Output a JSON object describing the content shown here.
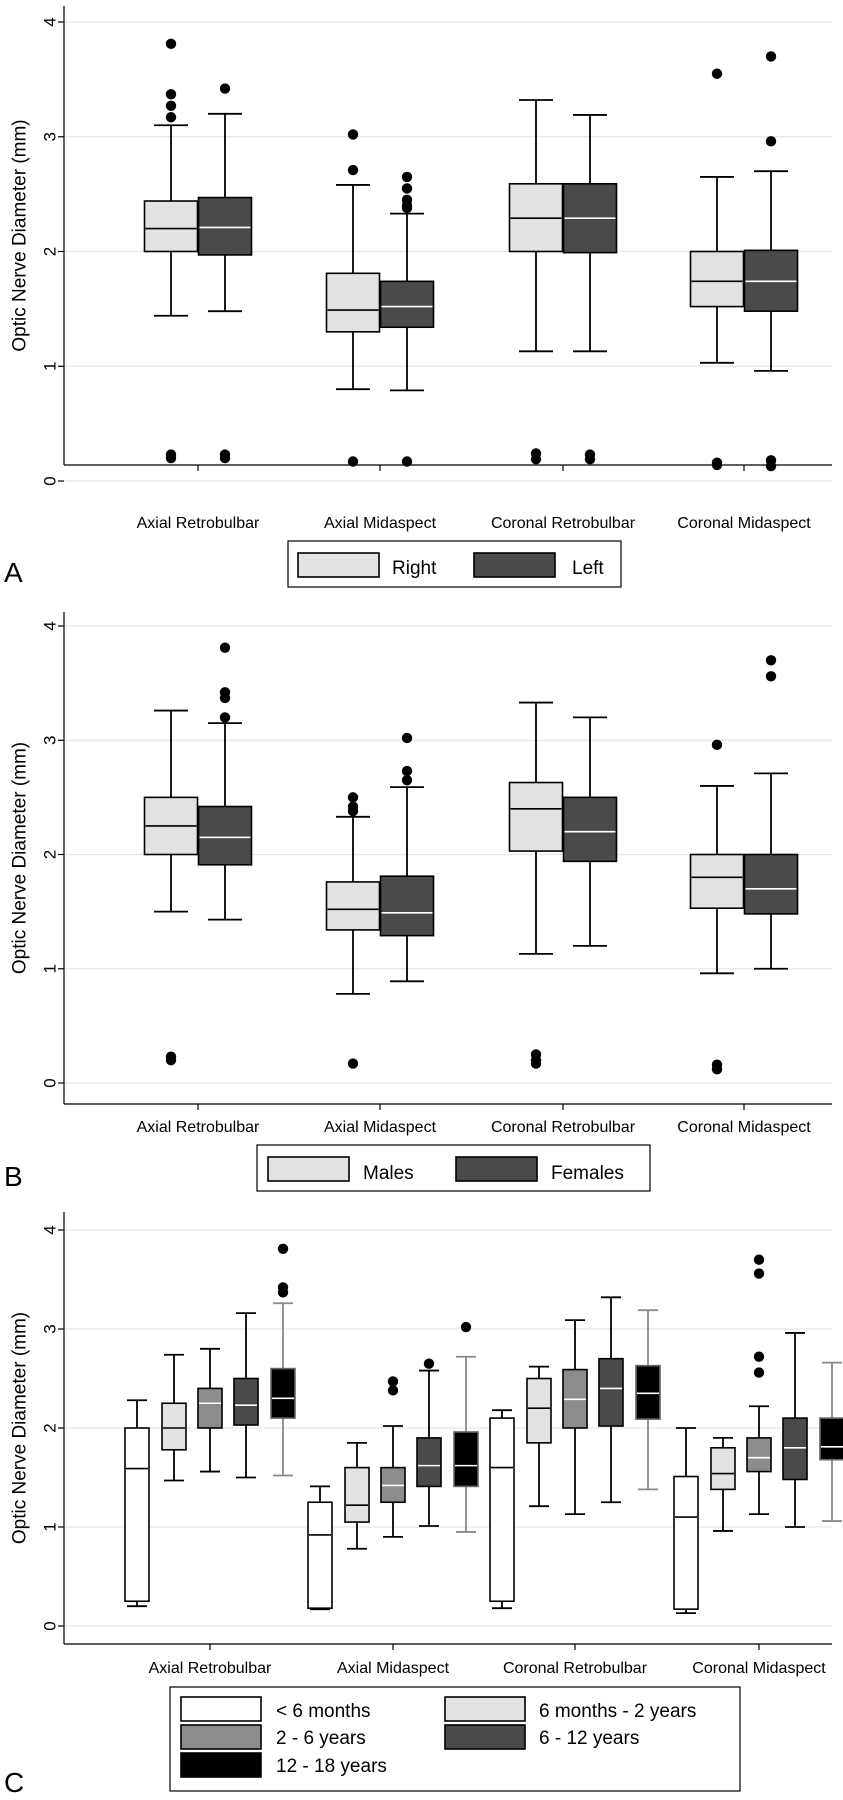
{
  "y_axis_label": "Optic Nerve Diameter (mm)",
  "colors": {
    "white": "#ffffff",
    "light": "#e2e2e2",
    "medium": "#8c8c8c",
    "dark": "#4a4a4a",
    "black": "#000000",
    "grid": "#e6e6e6"
  },
  "chart_data": [
    {
      "panel": "A",
      "type": "box",
      "ylabel": "Optic Nerve Diameter (mm)",
      "ylim": [
        0,
        4
      ],
      "yticks": [
        "0",
        "1",
        "2",
        "3",
        "4"
      ],
      "categories": [
        "Axial Retrobulbar",
        "Axial Midaspect",
        "Coronal Retrobulbar",
        "Coronal Midaspect"
      ],
      "legend": [
        {
          "name": "Right",
          "color": "#e2e2e2"
        },
        {
          "name": "Left",
          "color": "#4a4a4a"
        }
      ],
      "series": [
        {
          "name": "Right",
          "color": "#e2e2e2",
          "whisker": "#000",
          "boxes": [
            {
              "min": 1.44,
              "q1": 2.0,
              "median": 2.2,
              "q3": 2.44,
              "max": 3.1,
              "outliers": [
                3.81,
                3.37,
                3.27,
                3.17,
                0.23,
                0.2
              ]
            },
            {
              "min": 0.8,
              "q1": 1.3,
              "median": 1.49,
              "q3": 1.81,
              "max": 2.58,
              "outliers": [
                3.02,
                2.71,
                0.17
              ]
            },
            {
              "min": 1.13,
              "q1": 2.0,
              "median": 2.29,
              "q3": 2.59,
              "max": 3.32,
              "outliers": [
                0.24,
                0.19
              ]
            },
            {
              "min": 1.03,
              "q1": 1.52,
              "median": 1.74,
              "q3": 2.0,
              "max": 2.65,
              "outliers": [
                3.55,
                0.16,
                0.14
              ]
            }
          ]
        },
        {
          "name": "Left",
          "color": "#4a4a4a",
          "whisker": "#000",
          "boxes": [
            {
              "min": 1.48,
              "q1": 1.97,
              "median": 2.21,
              "q3": 2.47,
              "max": 3.2,
              "outliers": [
                3.42,
                0.23,
                0.2
              ]
            },
            {
              "min": 0.79,
              "q1": 1.34,
              "median": 1.52,
              "q3": 1.74,
              "max": 2.33,
              "outliers": [
                2.65,
                2.55,
                2.45,
                2.4,
                2.38,
                0.17
              ]
            },
            {
              "min": 1.13,
              "q1": 1.99,
              "median": 2.29,
              "q3": 2.59,
              "max": 3.19,
              "outliers": [
                0.23,
                0.19
              ]
            },
            {
              "min": 0.96,
              "q1": 1.48,
              "median": 1.74,
              "q3": 2.01,
              "max": 2.7,
              "outliers": [
                3.7,
                2.96,
                0.18,
                0.13
              ]
            }
          ]
        }
      ]
    },
    {
      "panel": "B",
      "type": "box",
      "ylabel": "Optic Nerve Diameter (mm)",
      "ylim": [
        0,
        4
      ],
      "yticks": [
        "0",
        "1",
        "2",
        "3",
        "4"
      ],
      "categories": [
        "Axial Retrobulbar",
        "Axial Midaspect",
        "Coronal Retrobulbar",
        "Coronal Midaspect"
      ],
      "legend": [
        {
          "name": "Males",
          "color": "#e2e2e2"
        },
        {
          "name": "Females",
          "color": "#4a4a4a"
        }
      ],
      "series": [
        {
          "name": "Males",
          "color": "#e2e2e2",
          "whisker": "#000",
          "boxes": [
            {
              "min": 1.5,
              "q1": 2.0,
              "median": 2.25,
              "q3": 2.5,
              "max": 3.26,
              "outliers": [
                0.23,
                0.2
              ]
            },
            {
              "min": 0.78,
              "q1": 1.34,
              "median": 1.52,
              "q3": 1.76,
              "max": 2.33,
              "outliers": [
                2.5,
                2.42,
                2.38,
                0.17
              ]
            },
            {
              "min": 1.13,
              "q1": 2.03,
              "median": 2.4,
              "q3": 2.63,
              "max": 3.33,
              "outliers": [
                0.25,
                0.2,
                0.17
              ]
            },
            {
              "min": 0.96,
              "q1": 1.53,
              "median": 1.8,
              "q3": 2.0,
              "max": 2.6,
              "outliers": [
                2.96,
                0.16,
                0.12
              ]
            }
          ]
        },
        {
          "name": "Females",
          "color": "#4a4a4a",
          "whisker": "#000",
          "boxes": [
            {
              "min": 1.43,
              "q1": 1.91,
              "median": 2.15,
              "q3": 2.42,
              "max": 3.15,
              "outliers": [
                3.81,
                3.42,
                3.37,
                3.2
              ]
            },
            {
              "min": 0.89,
              "q1": 1.29,
              "median": 1.49,
              "q3": 1.81,
              "max": 2.59,
              "outliers": [
                3.02,
                2.73,
                2.65
              ]
            },
            {
              "min": 1.2,
              "q1": 1.94,
              "median": 2.2,
              "q3": 2.5,
              "max": 3.2,
              "outliers": []
            },
            {
              "min": 1.0,
              "q1": 1.48,
              "median": 1.7,
              "q3": 2.0,
              "max": 2.71,
              "outliers": [
                3.7,
                3.56
              ]
            }
          ]
        }
      ]
    },
    {
      "panel": "C",
      "type": "box",
      "ylabel": "Optic Nerve Diameter (mm)",
      "ylim": [
        0,
        4
      ],
      "yticks": [
        "0",
        "1",
        "2",
        "3",
        "4"
      ],
      "categories": [
        "Axial Retrobulbar",
        "Axial Midaspect",
        "Coronal Retrobulbar",
        "Coronal Midaspect"
      ],
      "legend": [
        {
          "name": "< 6 months",
          "color": "#ffffff"
        },
        {
          "name": "6 months - 2 years",
          "color": "#e2e2e2"
        },
        {
          "name": "2 - 6 years",
          "color": "#8c8c8c"
        },
        {
          "name": "6 - 12 years",
          "color": "#4a4a4a"
        },
        {
          "name": "12 - 18 years",
          "color": "#000000"
        }
      ],
      "series": [
        {
          "name": "< 6 months",
          "color": "#ffffff",
          "whisker": "#000",
          "boxes": [
            {
              "min": 0.2,
              "q1": 0.25,
              "median": 1.59,
              "q3": 2.0,
              "max": 2.28,
              "outliers": []
            },
            {
              "min": 0.17,
              "q1": 0.18,
              "median": 0.92,
              "q3": 1.25,
              "max": 1.41,
              "outliers": []
            },
            {
              "min": 0.18,
              "q1": 0.25,
              "median": 1.6,
              "q3": 2.1,
              "max": 2.18,
              "outliers": []
            },
            {
              "min": 0.13,
              "q1": 0.17,
              "median": 1.1,
              "q3": 1.51,
              "max": 2.0,
              "outliers": []
            }
          ]
        },
        {
          "name": "6 months - 2 years",
          "color": "#e2e2e2",
          "whisker": "#000",
          "boxes": [
            {
              "min": 1.47,
              "q1": 1.78,
              "median": 2.0,
              "q3": 2.25,
              "max": 2.74,
              "outliers": []
            },
            {
              "min": 0.78,
              "q1": 1.05,
              "median": 1.22,
              "q3": 1.6,
              "max": 1.85,
              "outliers": []
            },
            {
              "min": 1.21,
              "q1": 1.85,
              "median": 2.2,
              "q3": 2.5,
              "max": 2.62,
              "outliers": []
            },
            {
              "min": 0.96,
              "q1": 1.38,
              "median": 1.54,
              "q3": 1.8,
              "max": 1.9,
              "outliers": []
            }
          ]
        },
        {
          "name": "2 - 6 years",
          "color": "#8c8c8c",
          "whisker": "#000",
          "boxes": [
            {
              "min": 1.56,
              "q1": 2.0,
              "median": 2.25,
              "q3": 2.4,
              "max": 2.8,
              "outliers": []
            },
            {
              "min": 0.9,
              "q1": 1.25,
              "median": 1.42,
              "q3": 1.6,
              "max": 2.02,
              "outliers": [
                2.47,
                2.38
              ]
            },
            {
              "min": 1.13,
              "q1": 2.0,
              "median": 2.29,
              "q3": 2.59,
              "max": 3.09,
              "outliers": []
            },
            {
              "min": 1.13,
              "q1": 1.56,
              "median": 1.7,
              "q3": 1.9,
              "max": 2.22,
              "outliers": [
                3.7,
                3.56,
                2.72,
                2.56
              ]
            }
          ]
        },
        {
          "name": "6 - 12 years",
          "color": "#4a4a4a",
          "whisker": "#000",
          "boxes": [
            {
              "min": 1.5,
              "q1": 2.03,
              "median": 2.23,
              "q3": 2.5,
              "max": 3.16,
              "outliers": []
            },
            {
              "min": 1.01,
              "q1": 1.41,
              "median": 1.62,
              "q3": 1.9,
              "max": 2.58,
              "outliers": [
                2.65
              ]
            },
            {
              "min": 1.25,
              "q1": 2.02,
              "median": 2.4,
              "q3": 2.7,
              "max": 3.32,
              "outliers": []
            },
            {
              "min": 1.0,
              "q1": 1.48,
              "median": 1.8,
              "q3": 2.1,
              "max": 2.96,
              "outliers": []
            }
          ]
        },
        {
          "name": "12 - 18 years",
          "color": "#000000",
          "whisker": "#888",
          "boxes": [
            {
              "min": 1.52,
              "q1": 2.1,
              "median": 2.3,
              "q3": 2.6,
              "max": 3.26,
              "outliers": [
                3.81,
                3.42,
                3.37
              ]
            },
            {
              "min": 0.95,
              "q1": 1.41,
              "median": 1.62,
              "q3": 1.96,
              "max": 2.72,
              "outliers": [
                3.02
              ]
            },
            {
              "min": 1.38,
              "q1": 2.09,
              "median": 2.35,
              "q3": 2.63,
              "max": 3.19,
              "outliers": []
            },
            {
              "min": 1.06,
              "q1": 1.68,
              "median": 1.81,
              "q3": 2.1,
              "max": 2.66,
              "outliers": []
            }
          ]
        }
      ]
    }
  ]
}
